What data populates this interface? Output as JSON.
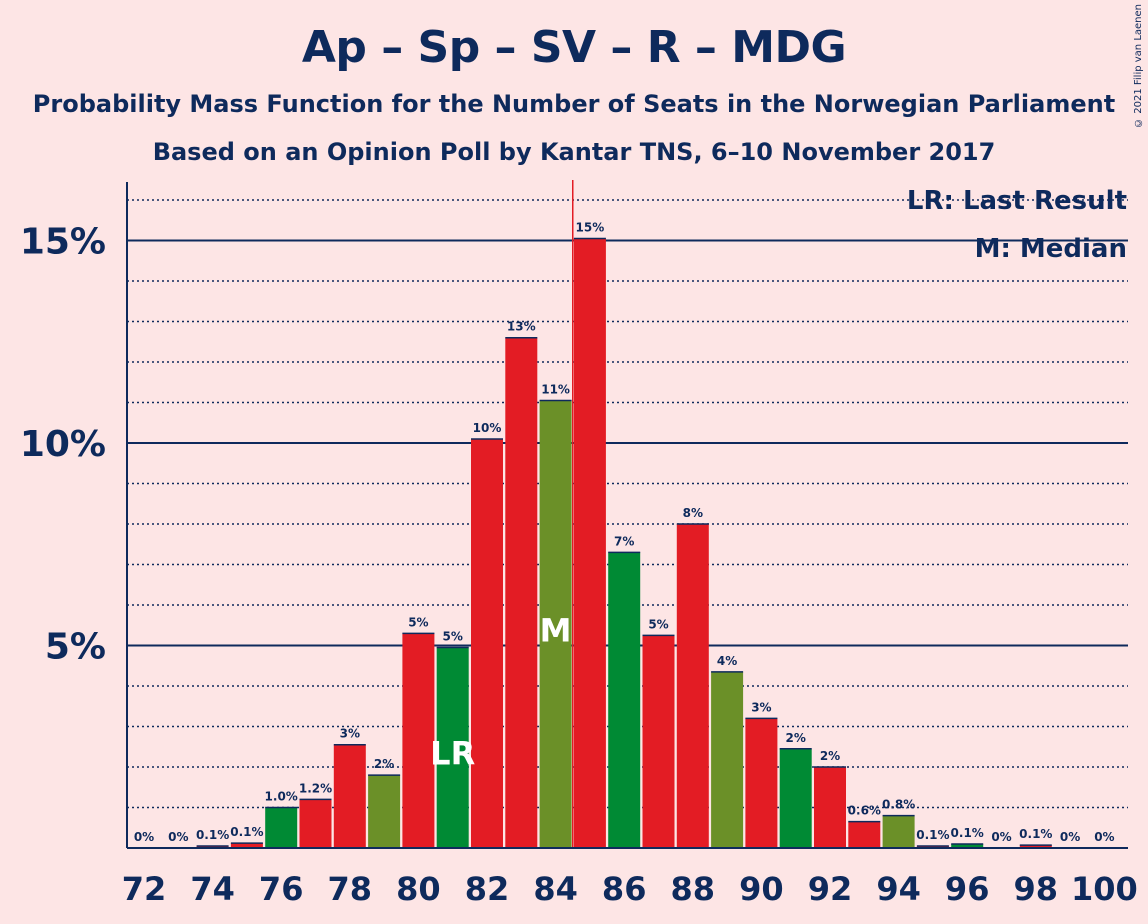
{
  "title": "Ap – Sp – SV – R – MDG",
  "subtitle1": "Probability Mass Function for the Number of Seats in the Norwegian Parliament",
  "subtitle2": "Based on an Opinion Poll by Kantar TNS, 6–10 November 2017",
  "copyright": "© 2021 Filip van Laenen",
  "legend": {
    "lr": "LR: Last Result",
    "m": "M: Median"
  },
  "markers": {
    "lr_text": "LR",
    "m_text": "M",
    "lr_seat": 81,
    "median_seat": 84,
    "majority_line_seat": 84.5
  },
  "colors": {
    "red": "#e31c24",
    "green": "#008a34",
    "olive": "#6b9028",
    "majority": "#e31c24",
    "axis": "#0e2a5c",
    "background": "#fde5e5"
  },
  "chart_data": {
    "type": "bar",
    "title": "Ap – Sp – SV – R – MDG",
    "ylim": [
      0,
      16.5
    ],
    "yticks": [
      {
        "v": 5,
        "label": "5%"
      },
      {
        "v": 10,
        "label": "10%"
      },
      {
        "v": 15,
        "label": "15%"
      }
    ],
    "x_tick_labels": [
      "72",
      "74",
      "76",
      "78",
      "80",
      "82",
      "84",
      "86",
      "88",
      "90",
      "92",
      "94",
      "96",
      "98",
      "100"
    ],
    "bars": [
      {
        "seat": 72,
        "value": 0,
        "label": "0%",
        "color": "red"
      },
      {
        "seat": 73,
        "value": 0,
        "label": "0%",
        "color": "red"
      },
      {
        "seat": 74,
        "value": 0.05,
        "label": "0.1%",
        "color": "red"
      },
      {
        "seat": 75,
        "value": 0.12,
        "label": "0.1%",
        "color": "red"
      },
      {
        "seat": 76,
        "value": 1.0,
        "label": "1.0%",
        "color": "green"
      },
      {
        "seat": 77,
        "value": 1.2,
        "label": "1.2%",
        "color": "red"
      },
      {
        "seat": 78,
        "value": 2.55,
        "label": "3%",
        "color": "red"
      },
      {
        "seat": 79,
        "value": 1.8,
        "label": "2%",
        "color": "olive"
      },
      {
        "seat": 80,
        "value": 5.3,
        "label": "5%",
        "color": "red"
      },
      {
        "seat": 81,
        "value": 4.95,
        "label": "5%",
        "color": "green"
      },
      {
        "seat": 82,
        "value": 10.1,
        "label": "10%",
        "color": "red"
      },
      {
        "seat": 83,
        "value": 12.6,
        "label": "13%",
        "color": "red"
      },
      {
        "seat": 84,
        "value": 11.05,
        "label": "11%",
        "color": "olive"
      },
      {
        "seat": 85,
        "value": 15.05,
        "label": "15%",
        "color": "red"
      },
      {
        "seat": 86,
        "value": 7.3,
        "label": "7%",
        "color": "green"
      },
      {
        "seat": 87,
        "value": 5.25,
        "label": "5%",
        "color": "red"
      },
      {
        "seat": 88,
        "value": 8.0,
        "label": "8%",
        "color": "red"
      },
      {
        "seat": 89,
        "value": 4.35,
        "label": "4%",
        "color": "olive"
      },
      {
        "seat": 90,
        "value": 3.2,
        "label": "3%",
        "color": "red"
      },
      {
        "seat": 91,
        "value": 2.45,
        "label": "2%",
        "color": "green"
      },
      {
        "seat": 92,
        "value": 2.0,
        "label": "2%",
        "color": "red"
      },
      {
        "seat": 93,
        "value": 0.65,
        "label": "0.6%",
        "color": "red"
      },
      {
        "seat": 94,
        "value": 0.8,
        "label": "0.8%",
        "color": "olive"
      },
      {
        "seat": 95,
        "value": 0.05,
        "label": "0.1%",
        "color": "red"
      },
      {
        "seat": 96,
        "value": 0.1,
        "label": "0.1%",
        "color": "green"
      },
      {
        "seat": 97,
        "value": 0,
        "label": "0%",
        "color": "red"
      },
      {
        "seat": 98,
        "value": 0.07,
        "label": "0.1%",
        "color": "red"
      },
      {
        "seat": 99,
        "value": 0,
        "label": "0%",
        "color": "olive"
      },
      {
        "seat": 100,
        "value": 0,
        "label": "0%",
        "color": "red"
      }
    ]
  }
}
